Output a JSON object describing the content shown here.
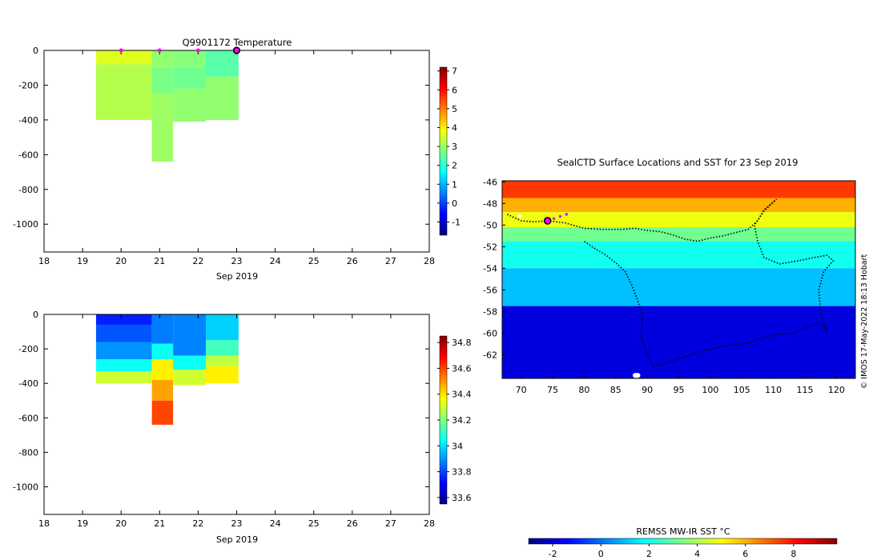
{
  "colors": {
    "jet": [
      "#000080",
      "#0000ff",
      "#0080ff",
      "#00ffff",
      "#80ff80",
      "#ffff00",
      "#ff8000",
      "#ff0000",
      "#800000"
    ],
    "profile_marker": "#ff00ff",
    "land": "#ffffff",
    "track": "#000000"
  },
  "credit": "© IMOS 17-May-2022 18:13 Hobart",
  "chart_data": [
    {
      "id": "temperature",
      "type": "heatmap",
      "title": "Q9901172  Temperature",
      "xlabel": "Sep 2019",
      "ylabel": "",
      "xlim": [
        18,
        28
      ],
      "ylim": [
        -1160,
        0
      ],
      "xticks": [
        18,
        19,
        20,
        21,
        22,
        23,
        24,
        25,
        26,
        27,
        28
      ],
      "yticks": [
        0,
        -200,
        -400,
        -600,
        -800,
        -1000
      ],
      "colorbar": {
        "min": -1.7,
        "max": 7.2,
        "ticks": [
          7,
          6,
          5,
          4,
          3,
          2,
          1,
          0,
          -1
        ]
      },
      "profile_times": [
        20,
        21,
        22,
        23
      ],
      "current_profile": 23,
      "profiles": [
        {
          "x0": 19.35,
          "x1": 20.8,
          "bottom": -400,
          "layers": [
            [
              0,
              -80,
              3.6
            ],
            [
              -80,
              -400,
              3.2
            ]
          ]
        },
        {
          "x0": 20.8,
          "x1": 21.35,
          "bottom": -640,
          "layers": [
            [
              0,
              -100,
              2.9
            ],
            [
              -100,
              -250,
              2.7
            ],
            [
              -250,
              -640,
              3.0
            ]
          ]
        },
        {
          "x0": 21.35,
          "x1": 22.2,
          "bottom": -410,
          "layers": [
            [
              0,
              -100,
              2.8
            ],
            [
              -100,
              -220,
              2.6
            ],
            [
              -220,
              -410,
              2.9
            ]
          ]
        },
        {
          "x0": 22.2,
          "x1": 23.05,
          "bottom": -400,
          "layers": [
            [
              0,
              -150,
              2.4
            ],
            [
              -150,
              -400,
              2.9
            ]
          ]
        }
      ]
    },
    {
      "id": "salinity",
      "type": "heatmap",
      "title": "",
      "xlabel": "Sep 2019",
      "ylabel": "",
      "xlim": [
        18,
        28
      ],
      "ylim": [
        -1160,
        0
      ],
      "xticks": [
        18,
        19,
        20,
        21,
        22,
        23,
        24,
        25,
        26,
        27,
        28
      ],
      "yticks": [
        0,
        -200,
        -400,
        -600,
        -800,
        -1000
      ],
      "colorbar": {
        "min": 33.55,
        "max": 34.85,
        "ticks": [
          34.8,
          34.6,
          34.4,
          34.2,
          34,
          33.8,
          33.6
        ]
      },
      "profiles": [
        {
          "x0": 19.35,
          "x1": 20.8,
          "bottom": -400,
          "layers": [
            [
              0,
              -60,
              33.75
            ],
            [
              -60,
              -160,
              33.82
            ],
            [
              -160,
              -260,
              33.9
            ],
            [
              -260,
              -330,
              34.05
            ],
            [
              -330,
              -400,
              34.3
            ]
          ]
        },
        {
          "x0": 20.8,
          "x1": 21.35,
          "bottom": -640,
          "layers": [
            [
              0,
              -170,
              33.87
            ],
            [
              -170,
              -260,
              34.05
            ],
            [
              -260,
              -380,
              34.38
            ],
            [
              -380,
              -500,
              34.48
            ],
            [
              -500,
              -640,
              34.6
            ]
          ]
        },
        {
          "x0": 21.35,
          "x1": 22.2,
          "bottom": -410,
          "layers": [
            [
              0,
              -240,
              33.88
            ],
            [
              -240,
              -320,
              34.05
            ],
            [
              -320,
              -410,
              34.3
            ]
          ]
        },
        {
          "x0": 22.2,
          "x1": 23.05,
          "bottom": -400,
          "layers": [
            [
              0,
              -150,
              33.98
            ],
            [
              -150,
              -240,
              34.12
            ],
            [
              -240,
              -300,
              34.28
            ],
            [
              -300,
              -400,
              34.38
            ]
          ]
        }
      ]
    },
    {
      "id": "sst-map",
      "type": "heatmap",
      "title": "SealCTD Surface Locations and SST for 23 Sep 2019",
      "xlabel": "",
      "ylabel": "",
      "xlim": [
        67,
        123
      ],
      "ylim": [
        -64.2,
        -45.9
      ],
      "xticks": [
        70,
        75,
        80,
        85,
        90,
        95,
        100,
        105,
        110,
        115,
        120
      ],
      "yticks": [
        -46,
        -48,
        -50,
        -52,
        -54,
        -56,
        -58,
        -60,
        -62
      ],
      "colorbar": {
        "label": "REMSS MW-IR SST °C",
        "min": -3,
        "max": 9.8,
        "ticks": [
          -2,
          0,
          2,
          4,
          6,
          8
        ]
      },
      "sst_bands": [
        {
          "lat0": -45.9,
          "lat1": -47.5,
          "sst": 7.5
        },
        {
          "lat0": -47.5,
          "lat1": -48.8,
          "sst": 6.0
        },
        {
          "lat0": -48.8,
          "lat1": -50.2,
          "sst": 4.8
        },
        {
          "lat0": -50.2,
          "lat1": -51.5,
          "sst": 3.2
        },
        {
          "lat0": -51.5,
          "lat1": -54.0,
          "sst": 2.0
        },
        {
          "lat0": -54.0,
          "lat1": -57.5,
          "sst": 1.0
        },
        {
          "lat0": -57.5,
          "lat1": -64.2,
          "sst": -1.8
        }
      ],
      "track": [
        [
          67.8,
          -49.0
        ],
        [
          70.0,
          -49.6
        ],
        [
          72.0,
          -49.7
        ],
        [
          74.2,
          -49.6
        ],
        [
          77.0,
          -49.8
        ],
        [
          80.0,
          -50.3
        ],
        [
          83.0,
          -50.4
        ],
        [
          86.0,
          -50.4
        ],
        [
          88.0,
          -50.3
        ],
        [
          90.0,
          -50.5
        ],
        [
          92.0,
          -50.6
        ],
        [
          94.0,
          -50.9
        ],
        [
          96.0,
          -51.3
        ],
        [
          98.0,
          -51.5
        ],
        [
          100.0,
          -51.2
        ],
        [
          102.0,
          -51.0
        ],
        [
          104.0,
          -50.7
        ],
        [
          106.0,
          -50.4
        ],
        [
          107.5,
          -49.6
        ],
        [
          108.5,
          -48.6
        ],
        [
          110.5,
          -47.6
        ],
        [
          108.5,
          -48.7
        ],
        [
          107.0,
          -50.0
        ],
        [
          107.5,
          -51.5
        ],
        [
          108.5,
          -53.0
        ],
        [
          111.0,
          -53.6
        ],
        [
          114.0,
          -53.3
        ],
        [
          116.5,
          -53.0
        ],
        [
          118.5,
          -52.8
        ],
        [
          119.5,
          -53.3
        ],
        [
          118.0,
          -54.3
        ],
        [
          117.2,
          -56.0
        ],
        [
          117.5,
          -58.0
        ],
        [
          118.5,
          -60.0
        ],
        [
          117.5,
          -59.0
        ],
        [
          116.0,
          -59.3
        ],
        [
          113.0,
          -60.0
        ],
        [
          110.0,
          -60.2
        ],
        [
          106.0,
          -60.9
        ],
        [
          102.0,
          -61.2
        ],
        [
          98.0,
          -61.8
        ],
        [
          94.0,
          -62.6
        ],
        [
          91.0,
          -63.1
        ],
        [
          90.0,
          -62.0
        ],
        [
          89.0,
          -60.2
        ],
        [
          89.3,
          -58.5
        ],
        [
          88.5,
          -57.0
        ],
        [
          87.5,
          -55.5
        ],
        [
          86.5,
          -54.3
        ],
        [
          85.0,
          -53.5
        ],
        [
          83.5,
          -52.8
        ],
        [
          81.5,
          -52.1
        ],
        [
          80.0,
          -51.5
        ]
      ],
      "recent_points": [
        [
          74.2,
          -49.6
        ],
        [
          75.2,
          -49.4
        ],
        [
          76.2,
          -49.2
        ],
        [
          77.2,
          -49.0
        ]
      ],
      "current_location": [
        74.2,
        -49.6
      ],
      "land_patches": [
        {
          "lon": 87.7,
          "lat": -63.7,
          "w": 1.2,
          "h": 0.45
        },
        {
          "lon": 69.5,
          "lat": -49.0,
          "w": 0.6,
          "h": 0.3
        }
      ]
    }
  ]
}
